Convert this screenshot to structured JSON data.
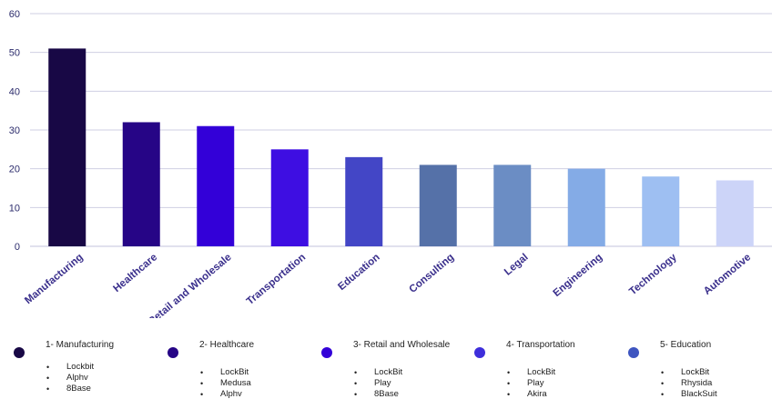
{
  "chart_data": {
    "type": "bar",
    "categories": [
      "Manufacturing",
      "Healthcare",
      "Retail and Wholesale",
      "Transportation",
      "Education",
      "Consulting",
      "Legal",
      "Engineering",
      "Technology",
      "Automotive"
    ],
    "values": [
      51,
      32,
      31,
      25,
      23,
      21,
      21,
      20,
      18,
      17
    ],
    "colors": [
      "#180845",
      "#260586",
      "#3300d8",
      "#3e0ee2",
      "#4346c6",
      "#5571a8",
      "#6b8dc4",
      "#84abe6",
      "#9ebff2",
      "#ccd4f8"
    ],
    "ylim": [
      0,
      60
    ],
    "yticks": [
      0,
      10,
      20,
      30,
      40,
      50,
      60
    ],
    "grid": true,
    "title": "",
    "xlabel": "",
    "ylabel": ""
  },
  "legend": [
    {
      "title": "1- Manufacturing",
      "color": "#180845",
      "items": [
        "Lockbit",
        "Alphv",
        "8Base"
      ]
    },
    {
      "title": "2- Healthcare",
      "color": "#260586",
      "items": [
        "LockBit",
        "Medusa",
        "Alphv"
      ]
    },
    {
      "title": "3- Retail and Wholesale",
      "color": "#3300d8",
      "items": [
        "LockBit",
        "Play",
        "8Base"
      ]
    },
    {
      "title": "4- Transportation",
      "color": "#3e2edb",
      "items": [
        "LockBit",
        "Play",
        "Akira"
      ]
    },
    {
      "title": "5- Education",
      "color": "#3e55c0",
      "items": [
        "LockBit",
        "Rhysida",
        "BlackSuit"
      ]
    }
  ]
}
